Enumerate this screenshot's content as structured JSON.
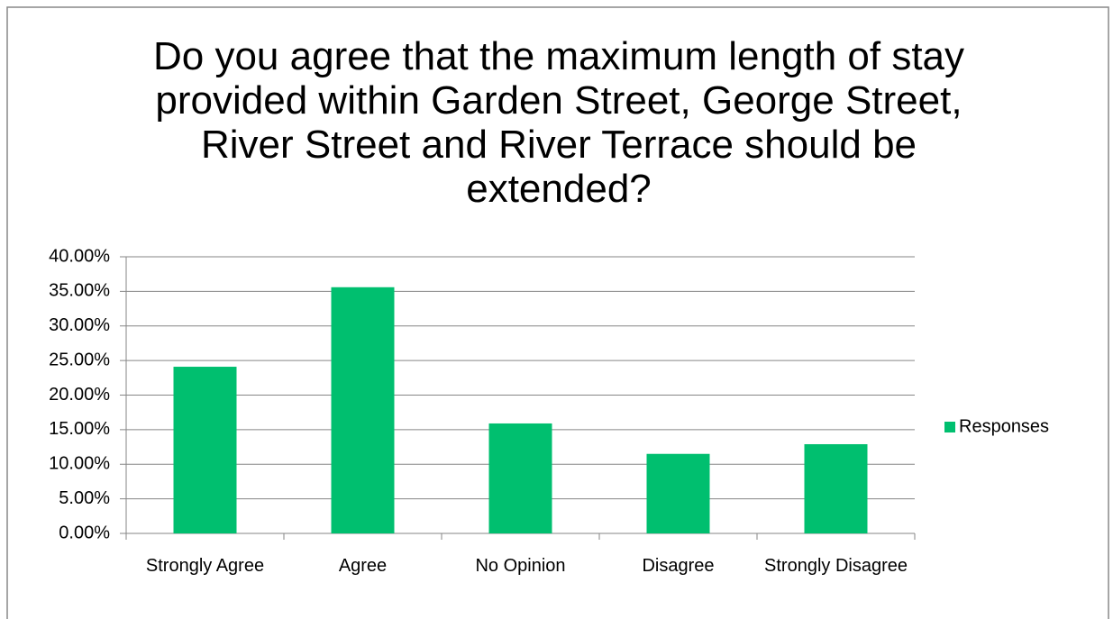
{
  "chart_data": {
    "type": "bar",
    "title": "Do you agree that the maximum length of stay provided within Garden Street, George Street, River Street and River Terrace should be extended?",
    "categories": [
      "Strongly Agree",
      "Agree",
      "No Opinion",
      "Disagree",
      "Strongly Disagree"
    ],
    "series": [
      {
        "name": "Responses",
        "color": "#00bf6f",
        "values": [
          24.1,
          35.6,
          15.9,
          11.5,
          12.9
        ]
      }
    ],
    "ylim": [
      0,
      40
    ],
    "yticks": [
      {
        "value": 0,
        "label": "0.00%"
      },
      {
        "value": 5,
        "label": "5.00%"
      },
      {
        "value": 10,
        "label": "10.00%"
      },
      {
        "value": 15,
        "label": "15.00%"
      },
      {
        "value": 20,
        "label": "20.00%"
      },
      {
        "value": 25,
        "label": "25.00%"
      },
      {
        "value": 30,
        "label": "30.00%"
      },
      {
        "value": 35,
        "label": "35.00%"
      },
      {
        "value": 40,
        "label": "40.00%"
      }
    ],
    "grid": true,
    "legend": "right"
  }
}
